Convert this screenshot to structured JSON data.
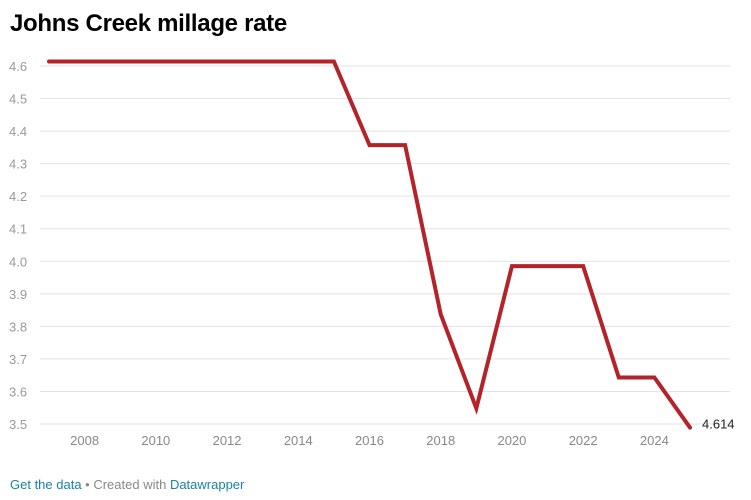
{
  "chart_data": {
    "type": "line",
    "title": "Johns Creek millage rate",
    "x": [
      2007,
      2008,
      2009,
      2010,
      2011,
      2012,
      2013,
      2014,
      2015,
      2016,
      2017,
      2018,
      2019,
      2020,
      2021,
      2022,
      2023,
      2024,
      2025
    ],
    "series": [
      {
        "values": [
          4.614,
          4.614,
          4.614,
          4.614,
          4.614,
          4.614,
          4.614,
          4.614,
          4.614,
          4.357,
          4.357,
          3.837,
          3.548,
          3.985,
          3.985,
          3.985,
          3.643,
          3.643,
          3.489
        ],
        "color": "#b5232a"
      }
    ],
    "end_label": "4.614",
    "xticks": [
      2008,
      2010,
      2012,
      2014,
      2016,
      2018,
      2020,
      2022,
      2024
    ],
    "yticks": [
      3.5,
      3.6,
      3.7,
      3.8,
      3.9,
      4.0,
      4.1,
      4.2,
      4.3,
      4.4,
      4.5,
      4.6
    ],
    "xlim": [
      2007,
      2025
    ],
    "ylim": [
      3.5,
      4.6
    ],
    "grid": true
  },
  "footer": {
    "get_data": "Get the data",
    "separator": " • Created with ",
    "datawrapper": "Datawrapper"
  }
}
